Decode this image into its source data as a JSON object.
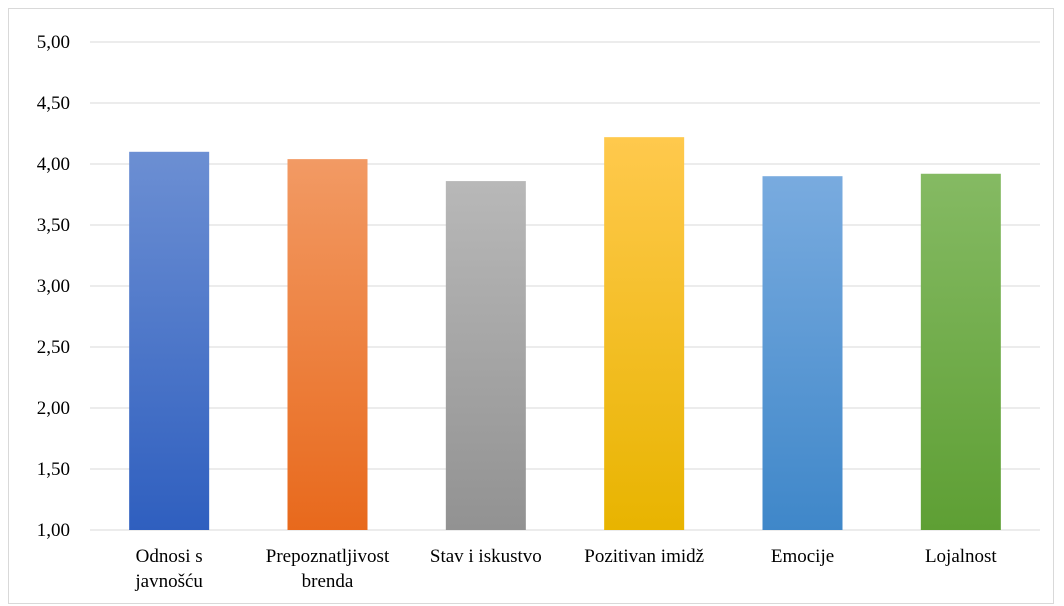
{
  "chart_data": {
    "type": "bar",
    "categories": [
      [
        "Odnosi s",
        "javnošću"
      ],
      [
        "Prepoznatljivost",
        "brenda"
      ],
      [
        "Stav i iskustvo"
      ],
      [
        "Pozitivan imidž"
      ],
      [
        "Emocije"
      ],
      [
        "Lojalnost"
      ]
    ],
    "values": [
      4.1,
      4.04,
      3.86,
      4.22,
      3.9,
      3.92
    ],
    "colors": [
      [
        "#6c8fd3",
        "#2f5fbf"
      ],
      [
        "#f29a64",
        "#e8691c"
      ],
      [
        "#b8b8b8",
        "#929292"
      ],
      [
        "#ffc94d",
        "#e8b400"
      ],
      [
        "#79abdf",
        "#3f87c9"
      ],
      [
        "#85ba63",
        "#5e9f34"
      ]
    ],
    "ylim": [
      1,
      5
    ],
    "yticks": [
      "1,00",
      "1,50",
      "2,00",
      "2,50",
      "3,00",
      "3,50",
      "4,00",
      "4,50",
      "5,00"
    ],
    "grid": true,
    "gridline_color": "#d9d9d9",
    "title": "",
    "xlabel": "",
    "ylabel": ""
  }
}
